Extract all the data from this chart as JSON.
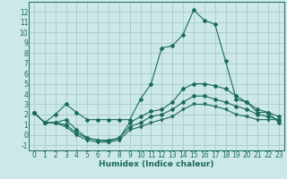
{
  "xlabel": "Humidex (Indice chaleur)",
  "x": [
    0,
    1,
    2,
    3,
    4,
    5,
    6,
    7,
    8,
    9,
    10,
    11,
    12,
    13,
    14,
    15,
    16,
    17,
    18,
    19,
    20,
    21,
    22,
    23
  ],
  "line1": [
    2.2,
    1.2,
    2.0,
    3.0,
    2.2,
    1.5,
    1.5,
    1.5,
    1.5,
    1.5,
    3.5,
    5.0,
    8.5,
    8.7,
    9.8,
    12.2,
    11.2,
    10.8,
    7.2,
    3.5,
    3.2,
    2.2,
    2.2,
    1.2
  ],
  "line2": [
    2.2,
    1.2,
    1.2,
    1.5,
    0.5,
    -0.3,
    -0.5,
    -0.5,
    -0.3,
    1.2,
    1.8,
    2.3,
    2.5,
    3.2,
    4.5,
    5.0,
    5.0,
    4.8,
    4.5,
    3.8,
    3.2,
    2.5,
    2.2,
    1.8
  ],
  "line3": [
    2.2,
    1.2,
    1.2,
    1.0,
    0.2,
    -0.3,
    -0.5,
    -0.6,
    -0.3,
    0.8,
    1.2,
    1.8,
    2.0,
    2.5,
    3.2,
    3.8,
    3.8,
    3.5,
    3.2,
    2.8,
    2.5,
    2.0,
    1.8,
    1.5
  ],
  "line4": [
    2.2,
    1.2,
    1.2,
    0.8,
    0.0,
    -0.5,
    -0.7,
    -0.7,
    -0.5,
    0.5,
    0.8,
    1.2,
    1.5,
    1.8,
    2.5,
    3.0,
    3.0,
    2.8,
    2.5,
    2.0,
    1.8,
    1.5,
    1.5,
    1.5
  ],
  "line_color": "#1a6b5a",
  "bg_color": "#cce8e8",
  "grid_color": "#aacaca",
  "ylim": [
    -1.5,
    13.0
  ],
  "yticks": [
    -1,
    0,
    1,
    2,
    3,
    4,
    5,
    6,
    7,
    8,
    9,
    10,
    11,
    12
  ],
  "xticks": [
    0,
    1,
    2,
    3,
    4,
    5,
    6,
    7,
    8,
    9,
    10,
    11,
    12,
    13,
    14,
    15,
    16,
    17,
    18,
    19,
    20,
    21,
    22,
    23
  ],
  "tick_fontsize": 5.5,
  "xlabel_fontsize": 6.5
}
